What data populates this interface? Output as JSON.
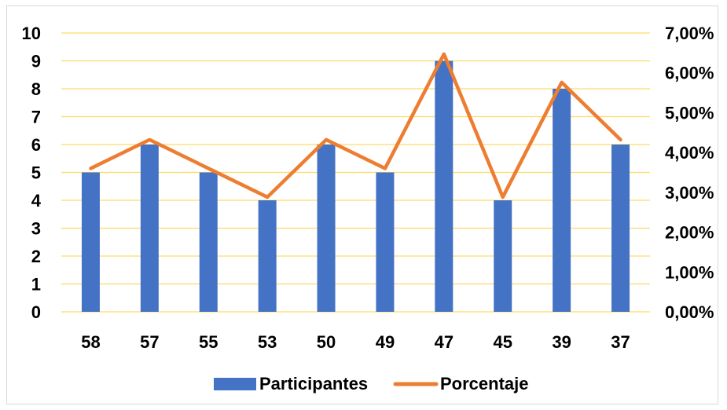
{
  "chart_data": {
    "type": "bar",
    "categories": [
      "58",
      "57",
      "55",
      "53",
      "50",
      "49",
      "47",
      "45",
      "39",
      "37"
    ],
    "series": [
      {
        "name": "Participantes",
        "type": "bar",
        "axis": "left",
        "color": "#4472c4",
        "values": [
          5,
          6,
          5,
          4,
          6,
          5,
          9,
          4,
          8,
          6
        ]
      },
      {
        "name": "Porcentaje",
        "type": "line",
        "axis": "right",
        "color": "#ed7d31",
        "values": [
          3.6,
          4.32,
          3.6,
          2.88,
          4.32,
          3.6,
          6.47,
          2.88,
          5.76,
          4.32
        ]
      }
    ],
    "ylim": [
      0,
      10
    ],
    "y2lim": [
      0,
      7
    ],
    "yticks": [
      "0",
      "1",
      "2",
      "3",
      "4",
      "5",
      "6",
      "7",
      "8",
      "9",
      "10"
    ],
    "y2ticks": [
      "0,00%",
      "1,00%",
      "2,00%",
      "3,00%",
      "4,00%",
      "5,00%",
      "6,00%",
      "7,00%"
    ],
    "gridlines": true,
    "grid_color": "#ffd966",
    "legend_position": "bottom"
  }
}
